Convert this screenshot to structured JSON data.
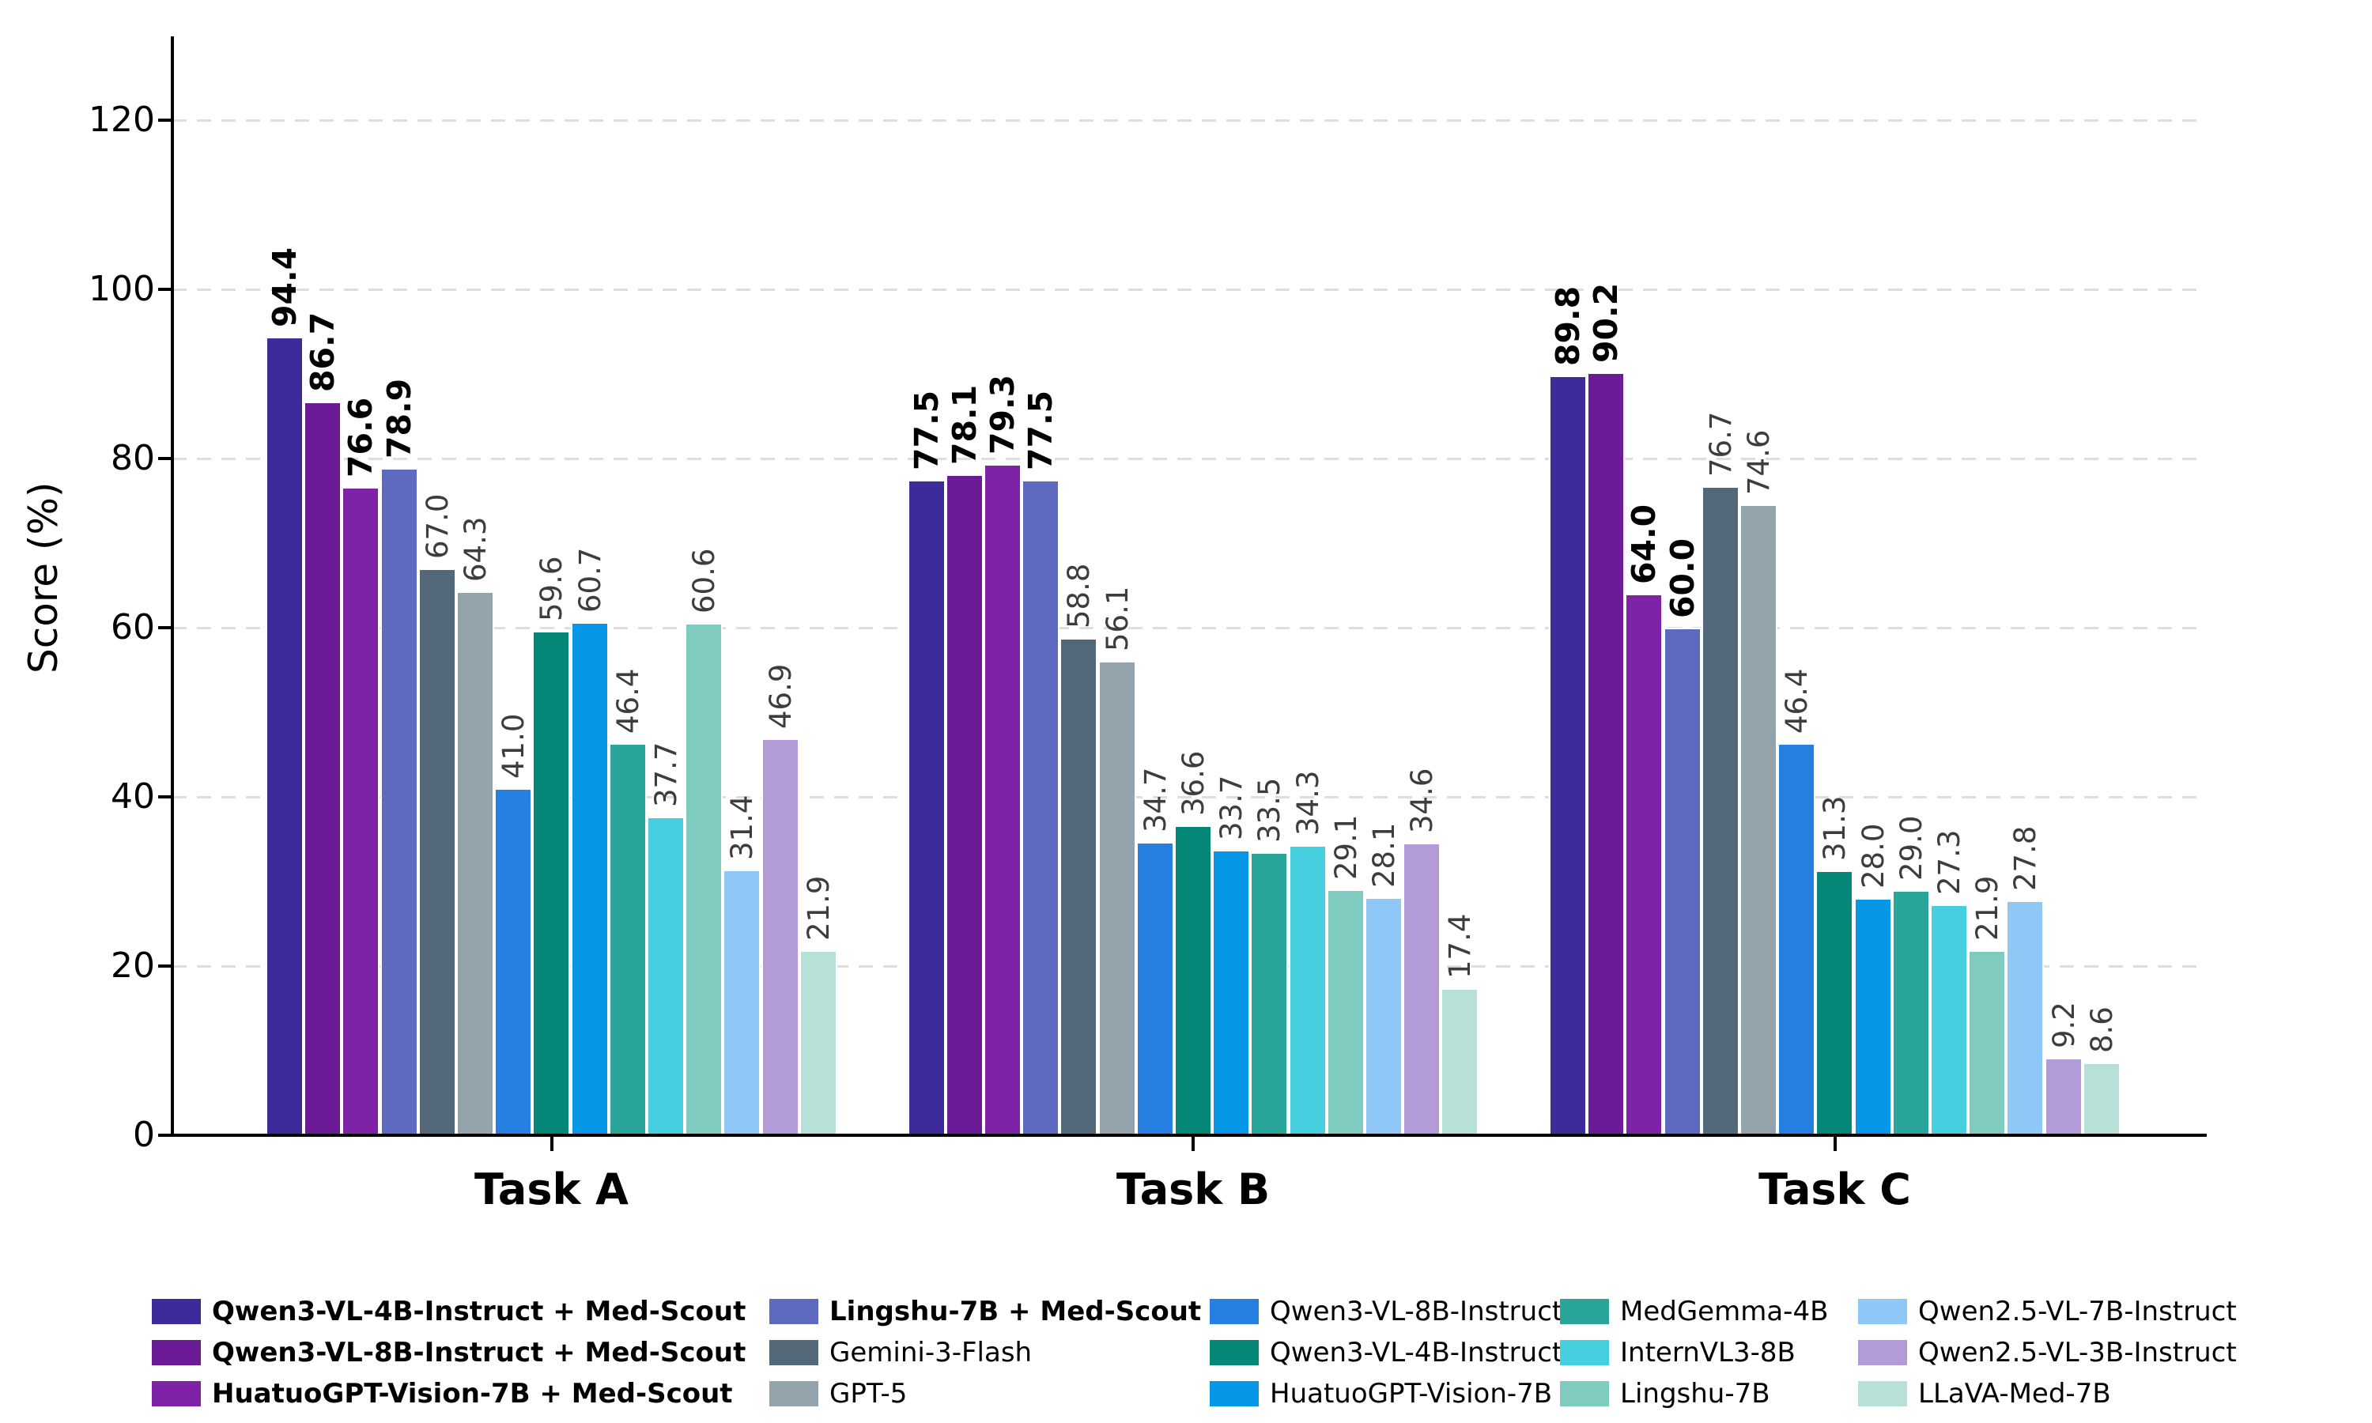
{
  "chart_data": {
    "type": "bar",
    "title": "",
    "ylabel": "Score (%)",
    "xlabel": "",
    "categories": [
      "Task A",
      "Task B",
      "Task C"
    ],
    "y_ticks": [
      0,
      20,
      40,
      60,
      80,
      100,
      120
    ],
    "ylim": [
      0,
      130
    ],
    "grid": "horizontal dashed",
    "legend_position": "bottom, 5 columns x 3 rows, column-major",
    "value_label_rotation": 90,
    "series": [
      {
        "name": "Qwen3-VL-4B-Instruct + Med-Scout",
        "color": "#3d2b9b",
        "bold": true,
        "values": [
          94.4,
          77.5,
          89.8
        ]
      },
      {
        "name": "Qwen3-VL-8B-Instruct + Med-Scout",
        "color": "#6b1b96",
        "bold": true,
        "values": [
          86.7,
          78.1,
          90.2
        ]
      },
      {
        "name": "HuatuoGPT-Vision-7B + Med-Scout",
        "color": "#7e22a8",
        "bold": true,
        "values": [
          76.6,
          79.3,
          64.0
        ]
      },
      {
        "name": "Lingshu-7B + Med-Scout",
        "color": "#5e6ac0",
        "bold": true,
        "values": [
          78.9,
          77.5,
          60.0
        ]
      },
      {
        "name": "Gemini-3-Flash",
        "color": "#536878",
        "bold": false,
        "values": [
          67.0,
          58.8,
          76.7
        ]
      },
      {
        "name": "GPT-5",
        "color": "#93a4ad",
        "bold": false,
        "values": [
          64.3,
          56.1,
          74.6
        ]
      },
      {
        "name": "Qwen3-VL-8B-Instruct",
        "color": "#2680e2",
        "bold": false,
        "values": [
          41.0,
          34.7,
          46.4
        ]
      },
      {
        "name": "Qwen3-VL-4B-Instruct",
        "color": "#048776",
        "bold": false,
        "values": [
          59.6,
          36.6,
          31.3
        ]
      },
      {
        "name": "HuatuoGPT-Vision-7B",
        "color": "#0697e6",
        "bold": false,
        "values": [
          60.7,
          33.7,
          28.0
        ]
      },
      {
        "name": "MedGemma-4B",
        "color": "#2aa59a",
        "bold": false,
        "values": [
          46.4,
          33.5,
          29.0
        ]
      },
      {
        "name": "InternVL3-8B",
        "color": "#46cfdf",
        "bold": false,
        "values": [
          37.7,
          34.3,
          27.3
        ]
      },
      {
        "name": "Lingshu-7B",
        "color": "#80cbc0",
        "bold": false,
        "values": [
          60.6,
          29.1,
          21.9
        ]
      },
      {
        "name": "Qwen2.5-VL-7B-Instruct",
        "color": "#8fc7f6",
        "bold": false,
        "values": [
          31.4,
          28.1,
          27.8
        ]
      },
      {
        "name": "Qwen2.5-VL-3B-Instruct",
        "color": "#b39bd8",
        "bold": false,
        "values": [
          46.9,
          34.6,
          9.2
        ]
      },
      {
        "name": "LLaVA-Med-7B",
        "color": "#b6e0d8",
        "bold": false,
        "values": [
          21.9,
          17.4,
          8.6
        ]
      }
    ]
  },
  "colors": {
    "background": "#ffffff",
    "axis": "#000000",
    "gridline": "#dedede",
    "value_label": "#3d3d3d",
    "value_label_bold": "#000000"
  }
}
